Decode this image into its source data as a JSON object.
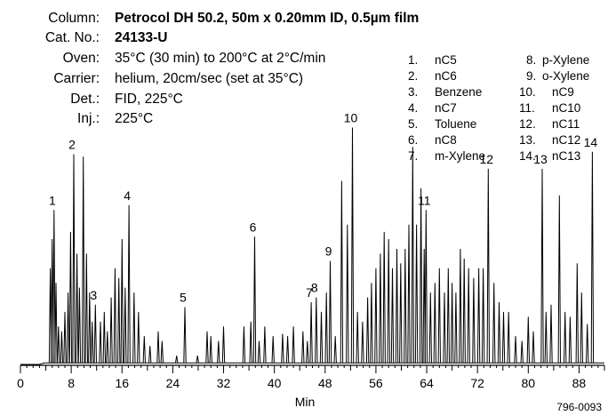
{
  "info": [
    {
      "label": "Column:",
      "value": "Petrocol DH 50.2, 50m x 0.20mm ID, 0.5µm film",
      "bold": true
    },
    {
      "label": "Cat. No.:",
      "value": "24133-U",
      "bold": true
    },
    {
      "label": "Oven:",
      "value": "35°C (30 min) to 200°C at 2°C/min",
      "bold": false
    },
    {
      "label": "Carrier:",
      "value": "helium, 20cm/sec (set at 35°C)",
      "bold": false
    },
    {
      "label": "Det.:",
      "value": "FID, 225°C",
      "bold": false
    },
    {
      "label": "Inj.:",
      "value": "225°C",
      "bold": false
    }
  ],
  "peak_legend": [
    {
      "num": "1.",
      "name": "nC5"
    },
    {
      "num": "2.",
      "name": "nC6"
    },
    {
      "num": "3.",
      "name": "Benzene"
    },
    {
      "num": "4.",
      "name": "nC7"
    },
    {
      "num": "5.",
      "name": "Toluene"
    },
    {
      "num": "6.",
      "name": "nC8"
    },
    {
      "num": "7.",
      "name": "m-Xylene"
    },
    {
      "num": "8.",
      "name": "p-Xylene"
    },
    {
      "num": "9.",
      "name": "o-Xylene"
    },
    {
      "num": "10.",
      "name": "nC9"
    },
    {
      "num": "11.",
      "name": "nC10"
    },
    {
      "num": "12.",
      "name": "nC11"
    },
    {
      "num": "13.",
      "name": "nC12"
    },
    {
      "num": "14.",
      "name": "nC13"
    }
  ],
  "footer_code": "796-0093",
  "chart_data": {
    "type": "line",
    "xlabel": "Min",
    "xlim": [
      0,
      92
    ],
    "ylim": [
      0,
      100
    ],
    "xticks": [
      0,
      8,
      16,
      24,
      32,
      40,
      48,
      56,
      64,
      72,
      80,
      88
    ],
    "grid": false,
    "baseline": 1,
    "baseline_start": 3.8,
    "labeled_peaks": [
      {
        "label": "1",
        "x": 5.3,
        "y": 64
      },
      {
        "label": "2",
        "x": 8.4,
        "y": 87
      },
      {
        "label": "3",
        "x": 11.8,
        "y": 25
      },
      {
        "label": "4",
        "x": 17.1,
        "y": 66
      },
      {
        "label": "5",
        "x": 25.9,
        "y": 24
      },
      {
        "label": "6",
        "x": 36.9,
        "y": 53
      },
      {
        "label": "7",
        "x": 45.8,
        "y": 26
      },
      {
        "label": "8",
        "x": 46.6,
        "y": 28
      },
      {
        "label": "9",
        "x": 48.8,
        "y": 43
      },
      {
        "label": "10",
        "x": 52.3,
        "y": 98
      },
      {
        "label": "11",
        "x": 63.9,
        "y": 64
      },
      {
        "label": "12",
        "x": 73.7,
        "y": 81
      },
      {
        "label": "13",
        "x": 82.2,
        "y": 81
      },
      {
        "label": "14",
        "x": 90.1,
        "y": 88
      }
    ],
    "other_peaks": [
      [
        4.7,
        40
      ],
      [
        5.0,
        52
      ],
      [
        5.6,
        34
      ],
      [
        6.0,
        16
      ],
      [
        6.5,
        14
      ],
      [
        7.0,
        22
      ],
      [
        7.5,
        30
      ],
      [
        7.9,
        55
      ],
      [
        8.9,
        46
      ],
      [
        9.3,
        32
      ],
      [
        9.9,
        86
      ],
      [
        10.4,
        46
      ],
      [
        10.9,
        30
      ],
      [
        11.3,
        18
      ],
      [
        12.6,
        18
      ],
      [
        13.2,
        22
      ],
      [
        13.7,
        14
      ],
      [
        14.3,
        28
      ],
      [
        14.9,
        40
      ],
      [
        15.5,
        36
      ],
      [
        16.0,
        52
      ],
      [
        16.5,
        32
      ],
      [
        17.9,
        30
      ],
      [
        18.6,
        22
      ],
      [
        19.5,
        12
      ],
      [
        20.4,
        8
      ],
      [
        21.7,
        14
      ],
      [
        22.3,
        10
      ],
      [
        24.6,
        4
      ],
      [
        27.9,
        4
      ],
      [
        29.4,
        14
      ],
      [
        30.0,
        12
      ],
      [
        31.2,
        10
      ],
      [
        32.0,
        16
      ],
      [
        35.2,
        16
      ],
      [
        36.3,
        18
      ],
      [
        37.6,
        10
      ],
      [
        38.5,
        16
      ],
      [
        39.8,
        12
      ],
      [
        41.3,
        13
      ],
      [
        42.1,
        12
      ],
      [
        43.0,
        16
      ],
      [
        44.5,
        14
      ],
      [
        45.2,
        10
      ],
      [
        47.4,
        22
      ],
      [
        48.2,
        30
      ],
      [
        49.6,
        12
      ],
      [
        50.6,
        76
      ],
      [
        51.5,
        58
      ],
      [
        53.1,
        22
      ],
      [
        53.9,
        18
      ],
      [
        54.7,
        28
      ],
      [
        55.3,
        34
      ],
      [
        56.0,
        40
      ],
      [
        56.7,
        46
      ],
      [
        57.3,
        55
      ],
      [
        58.0,
        52
      ],
      [
        58.6,
        40
      ],
      [
        59.3,
        48
      ],
      [
        59.9,
        42
      ],
      [
        60.6,
        48
      ],
      [
        61.2,
        58
      ],
      [
        61.8,
        90
      ],
      [
        62.4,
        58
      ],
      [
        63.1,
        73
      ],
      [
        63.6,
        48
      ],
      [
        64.6,
        30
      ],
      [
        65.3,
        34
      ],
      [
        66.0,
        40
      ],
      [
        66.8,
        30
      ],
      [
        67.4,
        40
      ],
      [
        68.0,
        34
      ],
      [
        68.6,
        30
      ],
      [
        69.3,
        48
      ],
      [
        69.9,
        44
      ],
      [
        70.6,
        40
      ],
      [
        71.4,
        36
      ],
      [
        72.2,
        40
      ],
      [
        72.9,
        40
      ],
      [
        74.6,
        34
      ],
      [
        75.4,
        26
      ],
      [
        76.1,
        22
      ],
      [
        76.9,
        22
      ],
      [
        78.0,
        12
      ],
      [
        79.0,
        10
      ],
      [
        80.0,
        20
      ],
      [
        80.8,
        14
      ],
      [
        82.8,
        22
      ],
      [
        83.6,
        25
      ],
      [
        84.9,
        70
      ],
      [
        85.8,
        22
      ],
      [
        86.6,
        20
      ],
      [
        87.7,
        42
      ],
      [
        88.4,
        30
      ],
      [
        89.3,
        17
      ]
    ]
  }
}
